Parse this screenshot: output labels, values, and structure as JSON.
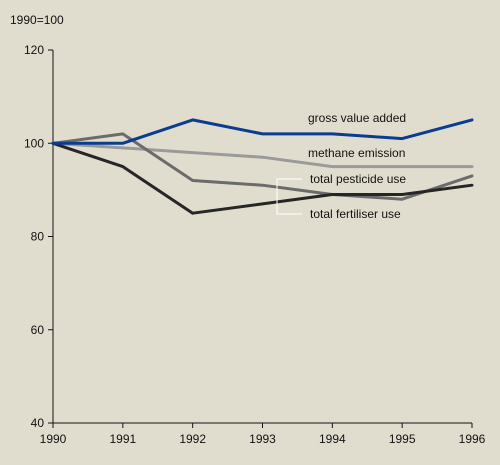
{
  "chart_data": {
    "type": "line",
    "index_label": "1990=100",
    "x": [
      "1990",
      "1991",
      "1992",
      "1993",
      "1994",
      "1995",
      "1996"
    ],
    "yticks": [
      "40",
      "60",
      "80",
      "100",
      "120"
    ],
    "ylim": [
      40,
      120
    ],
    "grid": false,
    "series": [
      {
        "name": "gross value added",
        "color": "#0a3d8f",
        "values": [
          100,
          100,
          105,
          102,
          102,
          101,
          105
        ]
      },
      {
        "name": "methane emission",
        "color": "#9a9a9a",
        "values": [
          100,
          99,
          98,
          97,
          95,
          95,
          95
        ]
      },
      {
        "name": "total pesticide use",
        "color": "#6b6b6b",
        "values": [
          100,
          102,
          92,
          91,
          89,
          88,
          93
        ]
      },
      {
        "name": "total fertiliser use",
        "color": "#262626",
        "values": [
          100,
          95,
          85,
          87,
          89,
          89,
          91
        ]
      }
    ]
  }
}
